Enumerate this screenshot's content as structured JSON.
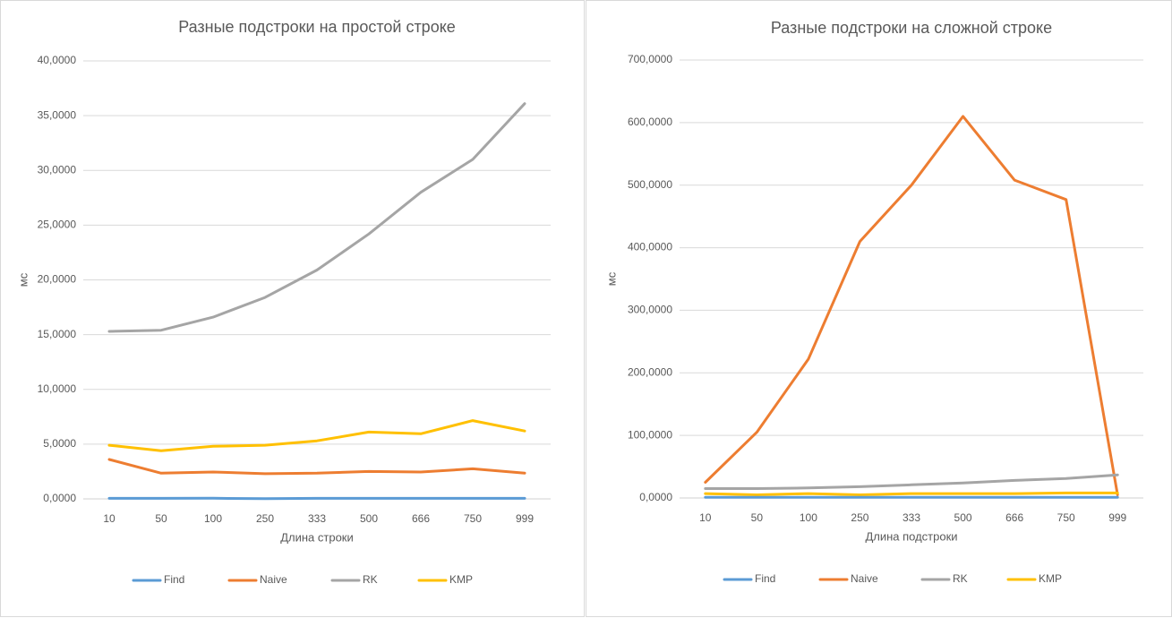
{
  "chart_data": [
    {
      "type": "line",
      "title": "Разные подстроки на простой строке",
      "xlabel": "Длина строки",
      "ylabel": "мс",
      "ylim": [
        0,
        40
      ],
      "ystep": 5,
      "ytick_labels": [
        "0,0000",
        "5,0000",
        "10,0000",
        "15,0000",
        "20,0000",
        "25,0000",
        "30,0000",
        "35,0000",
        "40,0000"
      ],
      "categories": [
        "10",
        "50",
        "100",
        "250",
        "333",
        "500",
        "666",
        "750",
        "999"
      ],
      "grid": true,
      "legend_position": "bottom",
      "series": [
        {
          "name": "Find",
          "color": "#5B9BD5",
          "values": [
            0.05,
            0.05,
            0.06,
            0.02,
            0.05,
            0.05,
            0.05,
            0.05,
            0.05
          ]
        },
        {
          "name": "Naive",
          "color": "#ED7D31",
          "values": [
            3.6,
            2.35,
            2.45,
            2.3,
            2.35,
            2.5,
            2.45,
            2.75,
            2.35
          ]
        },
        {
          "name": "RK",
          "color": "#A5A5A5",
          "values": [
            15.3,
            15.4,
            16.6,
            18.4,
            20.9,
            24.2,
            28.0,
            31.0,
            36.1
          ]
        },
        {
          "name": "KMP",
          "color": "#FFC000",
          "values": [
            4.9,
            4.4,
            4.8,
            4.9,
            5.3,
            6.1,
            5.95,
            7.15,
            6.2
          ]
        }
      ]
    },
    {
      "type": "line",
      "title": "Разные подстроки на сложной строке",
      "xlabel": "Длина подстроки",
      "ylabel": "мс",
      "ylim": [
        0,
        700
      ],
      "ystep": 100,
      "ytick_labels": [
        "0,0000",
        "100,0000",
        "200,0000",
        "300,0000",
        "400,0000",
        "500,0000",
        "600,0000",
        "700,0000"
      ],
      "categories": [
        "10",
        "50",
        "100",
        "250",
        "333",
        "500",
        "666",
        "750",
        "999"
      ],
      "grid": true,
      "legend_position": "bottom",
      "series": [
        {
          "name": "Find",
          "color": "#5B9BD5",
          "values": [
            1,
            1,
            1,
            1,
            1,
            1,
            1,
            1,
            1
          ]
        },
        {
          "name": "Naive",
          "color": "#ED7D31",
          "values": [
            25,
            105,
            222,
            410,
            500,
            610,
            508,
            477,
            5
          ]
        },
        {
          "name": "RK",
          "color": "#A5A5A5",
          "values": [
            15,
            15,
            16,
            18,
            21,
            24,
            28,
            31,
            37
          ]
        },
        {
          "name": "KMP",
          "color": "#FFC000",
          "values": [
            7,
            5,
            7,
            5,
            7,
            7,
            7,
            8,
            8
          ]
        }
      ]
    }
  ]
}
